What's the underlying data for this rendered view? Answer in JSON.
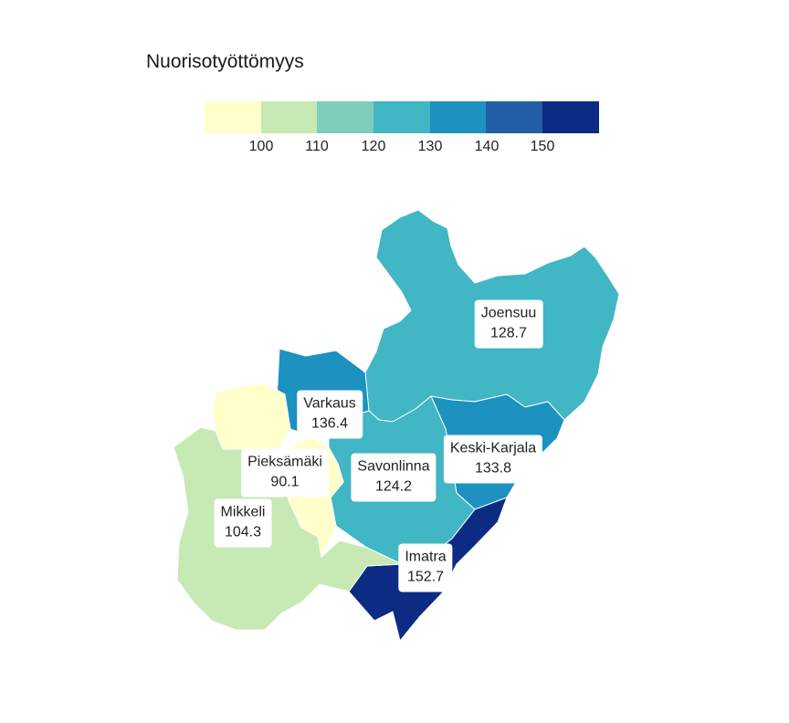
{
  "title": "Nuorisotyöttömyys",
  "legend": {
    "colors": [
      "#ffffcc",
      "#c7e9b4",
      "#7fcdbb",
      "#41b6c4",
      "#1d91c0",
      "#225ea8",
      "#0c2c84"
    ],
    "ticks": [
      "100",
      "110",
      "120",
      "130",
      "140",
      "150"
    ]
  },
  "regions": [
    {
      "name": "Joensuu",
      "value": "128.7",
      "color": "#41b6c4"
    },
    {
      "name": "Varkaus",
      "value": "136.4",
      "color": "#1d91c0"
    },
    {
      "name": "Pieksämäki",
      "value": "90.1",
      "color": "#ffffcc"
    },
    {
      "name": "Savonlinna",
      "value": "124.2",
      "color": "#41b6c4"
    },
    {
      "name": "Keski-Karjala",
      "value": "133.8",
      "color": "#1d91c0"
    },
    {
      "name": "Mikkeli",
      "value": "104.3",
      "color": "#c7e9b4"
    },
    {
      "name": "Imatra",
      "value": "152.7",
      "color": "#0c2c84"
    }
  ]
}
